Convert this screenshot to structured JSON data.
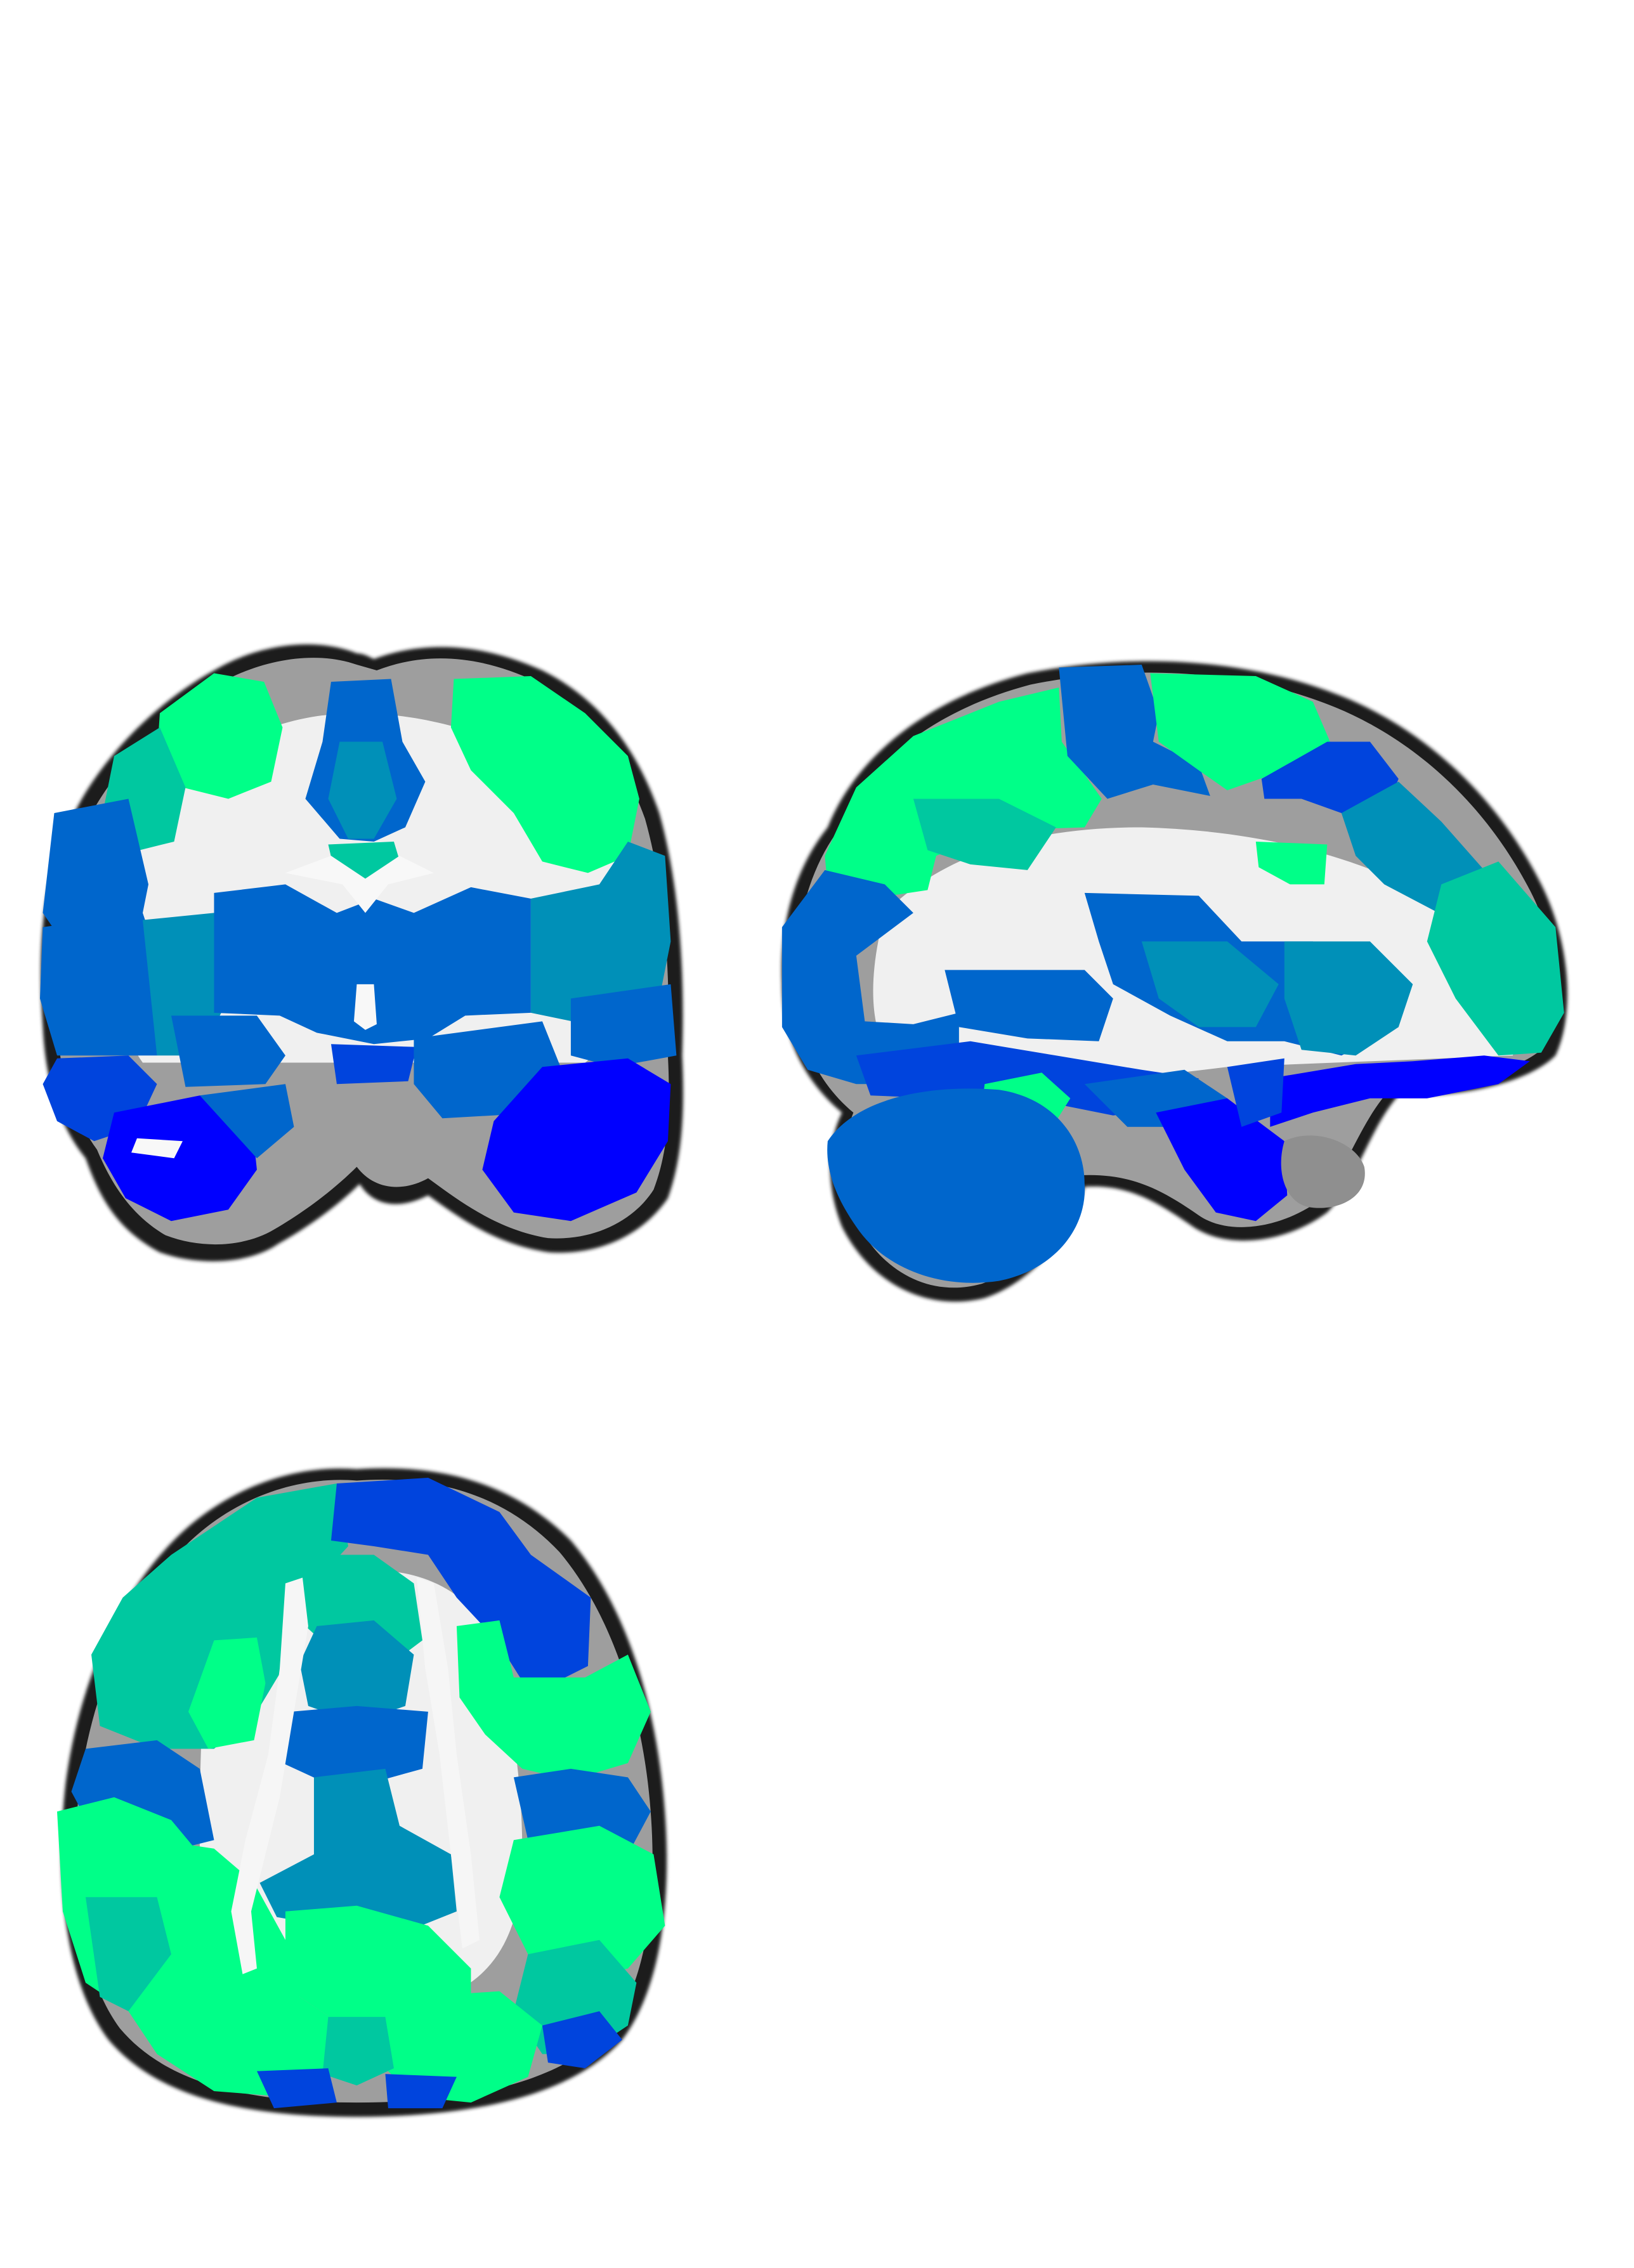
{
  "figure": {
    "background": "#ffffff",
    "views": [
      {
        "name": "coronal-slice"
      },
      {
        "name": "sagittal-slice"
      },
      {
        "name": "axial-slice"
      }
    ]
  },
  "palette": {
    "spring_green": "#00ff88",
    "aquamarine": "#00c8a0",
    "teal": "#0090b8",
    "medium_blue": "#0066cc",
    "royal_blue": "#0044dd",
    "pure_blue": "#0000ff",
    "white_matter": "#f2f2f2",
    "gray_matter": "#a8a8a8",
    "outline": "#111111"
  }
}
